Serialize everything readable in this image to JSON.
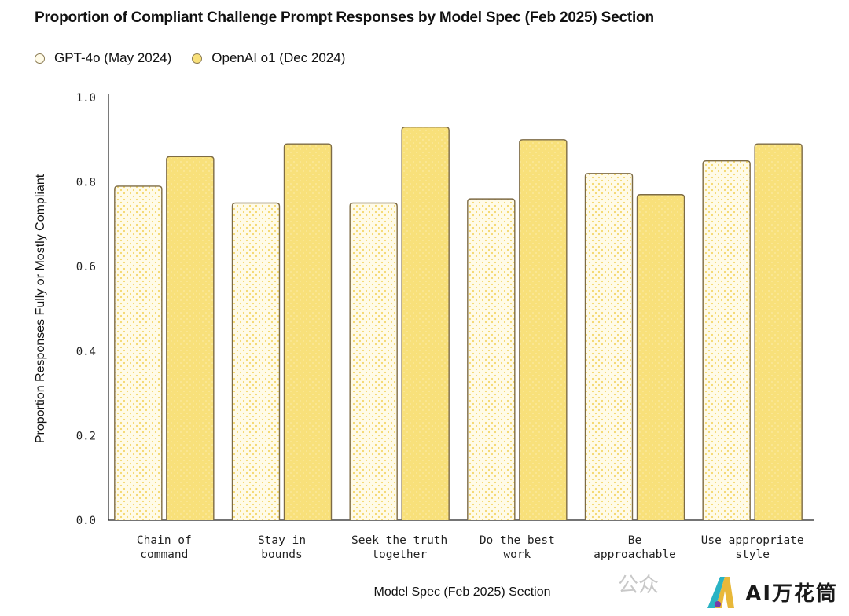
{
  "chart_data": {
    "type": "bar",
    "title": "Proportion of Compliant Challenge Prompt Responses by Model Spec (Feb 2025) Section",
    "xlabel": "Model Spec (Feb 2025) Section",
    "ylabel": "Proportion Responses Fully or Mostly Compliant",
    "ylim": [
      0,
      1.0
    ],
    "yticks": [
      "0.0",
      "0.2",
      "0.4",
      "0.6",
      "0.8",
      "1.0"
    ],
    "categories": [
      [
        "Chain of",
        "command"
      ],
      [
        "Stay in",
        "bounds"
      ],
      [
        "Seek the truth",
        "together"
      ],
      [
        "Do the best",
        "work"
      ],
      [
        "Be",
        "approachable"
      ],
      [
        "Use appropriate",
        "style"
      ]
    ],
    "series": [
      {
        "name": "GPT-4o (May 2024)",
        "values": [
          0.79,
          0.75,
          0.75,
          0.76,
          0.82,
          0.85
        ],
        "fill": "#fffbe8",
        "dot": "#f4d76a"
      },
      {
        "name": "OpenAI o1 (Dec 2024)",
        "values": [
          0.86,
          0.89,
          0.93,
          0.9,
          0.77,
          0.89
        ],
        "fill": "#f8e07a",
        "dot": "#fbe99a"
      }
    ],
    "legend_position": "top-left",
    "grid": false,
    "bar_stroke": "#7d6b45"
  },
  "watermark": {
    "brand": "AI万花筒",
    "faint": "公众"
  }
}
